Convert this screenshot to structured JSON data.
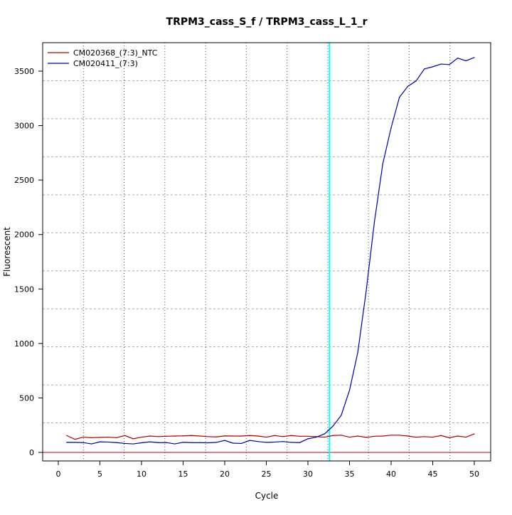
{
  "chart_data": {
    "type": "line",
    "title": "TRPM3_cass_S_f / TRPM3_cass_L_1_r",
    "xlabel": "Cycle",
    "ylabel": "Fluorescent",
    "xlim": [
      -2,
      52
    ],
    "ylim": [
      -80,
      3750
    ],
    "x_ticks": [
      0,
      5,
      10,
      15,
      20,
      25,
      30,
      35,
      40,
      45,
      50
    ],
    "y_ticks": [
      0,
      500,
      1000,
      1500,
      2000,
      2500,
      3000,
      3500
    ],
    "grid": true,
    "legend": "top-left",
    "threshold": {
      "value": 0,
      "color": "#cc0000"
    },
    "cycle_marker": {
      "value": 32.6,
      "color": "#00ffff"
    },
    "x": [
      1,
      2,
      3,
      4,
      5,
      6,
      7,
      8,
      9,
      10,
      11,
      12,
      13,
      14,
      15,
      16,
      17,
      18,
      19,
      20,
      21,
      22,
      23,
      24,
      25,
      26,
      27,
      28,
      29,
      30,
      31,
      32,
      33,
      34,
      35,
      36,
      37,
      38,
      39,
      40,
      41,
      42,
      43,
      44,
      45,
      46,
      47,
      48,
      49,
      50
    ],
    "series": [
      {
        "name": "CM020368_(7:3)_NTC",
        "color": "#aa0000",
        "values": [
          155,
          120,
          140,
          135,
          138,
          140,
          135,
          155,
          125,
          140,
          150,
          145,
          148,
          150,
          152,
          155,
          150,
          145,
          142,
          152,
          150,
          150,
          155,
          150,
          140,
          155,
          145,
          155,
          148,
          148,
          145,
          140,
          155,
          158,
          140,
          150,
          138,
          148,
          150,
          158,
          158,
          150,
          140,
          145,
          140,
          155,
          135,
          150,
          140,
          170
        ]
      },
      {
        "name": "CM020411_(7:3)",
        "color": "#0000aa",
        "values": [
          92,
          92,
          90,
          78,
          97,
          95,
          90,
          82,
          78,
          88,
          97,
          90,
          90,
          78,
          93,
          90,
          90,
          88,
          92,
          110,
          85,
          82,
          110,
          100,
          92,
          95,
          100,
          92,
          90,
          125,
          140,
          170,
          240,
          340,
          570,
          920,
          1480,
          2120,
          2650,
          2980,
          3260,
          3360,
          3410,
          3520,
          3540,
          3565,
          3560,
          3620,
          3595,
          3625
        ]
      }
    ]
  }
}
